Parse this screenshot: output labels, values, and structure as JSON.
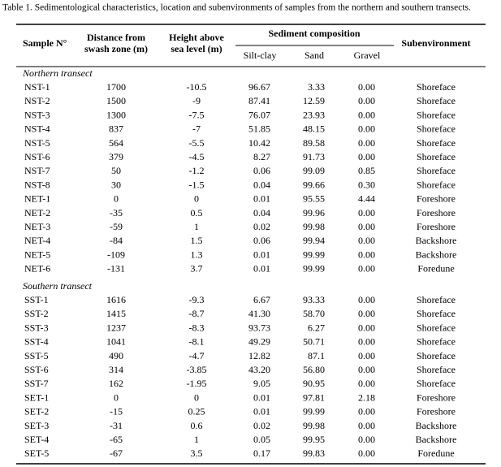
{
  "caption": "Table 1. Sedimentological characteristics, location and subenvironments of samples from the northern and southern transects.",
  "table": {
    "header": {
      "sample": [
        "Sample N°"
      ],
      "distance": [
        "Distance from",
        "swash zone (m)"
      ],
      "height": [
        "Height above",
        "sea level (m)"
      ],
      "composition": "Sediment composition",
      "silt_clay": "Silt-clay",
      "sand": "Sand",
      "gravel": "Gravel",
      "subenvironment": [
        "Subenvironment"
      ]
    },
    "groups": [
      {
        "label": "Northern transect",
        "rows": [
          [
            "NST-1",
            "1700",
            "-10.5",
            "96.67",
            "3.33",
            "0.00",
            "Shoreface"
          ],
          [
            "NST-2",
            "1500",
            "-9",
            "87.41",
            "12.59",
            "0.00",
            "Shoreface"
          ],
          [
            "NST-3",
            "1300",
            "-7.5",
            "76.07",
            "23.93",
            "0.00",
            "Shoreface"
          ],
          [
            "NST-4",
            "837",
            "-7",
            "51.85",
            "48.15",
            "0.00",
            "Shoreface"
          ],
          [
            "NST-5",
            "564",
            "-5.5",
            "10.42",
            "89.58",
            "0.00",
            "Shoreface"
          ],
          [
            "NST-6",
            "379",
            "-4.5",
            "8.27",
            "91.73",
            "0.00",
            "Shoreface"
          ],
          [
            "NST-7",
            "50",
            "-1.2",
            "0.06",
            "99.09",
            "0.85",
            "Shoreface"
          ],
          [
            "NST-8",
            "30",
            "-1.5",
            "0.04",
            "99.66",
            "0.30",
            "Shoreface"
          ],
          [
            "NET-1",
            "0",
            "0",
            "0.01",
            "95.55",
            "4.44",
            "Foreshore"
          ],
          [
            "NET-2",
            "-35",
            "0.5",
            "0.04",
            "99.96",
            "0.00",
            "Foreshore"
          ],
          [
            "NET-3",
            "-59",
            "1",
            "0.02",
            "99.98",
            "0.00",
            "Foreshore"
          ],
          [
            "NET-4",
            "-84",
            "1.5",
            "0.06",
            "99.94",
            "0.00",
            "Backshore"
          ],
          [
            "NET-5",
            "-109",
            "1.3",
            "0.01",
            "99.99",
            "0.00",
            "Backshore"
          ],
          [
            "NET-6",
            "-131",
            "3.7",
            "0.01",
            "99.99",
            "0.00",
            "Foredune"
          ]
        ]
      },
      {
        "label": "Southern transect",
        "rows": [
          [
            "SST-1",
            "1616",
            "-9.3",
            "6.67",
            "93.33",
            "0.00",
            "Shoreface"
          ],
          [
            "SST-2",
            "1415",
            "-8.7",
            "41.30",
            "58.70",
            "0.00",
            "Shoreface"
          ],
          [
            "SST-3",
            "1237",
            "-8.3",
            "93.73",
            "6.27",
            "0.00",
            "Shoreface"
          ],
          [
            "SST-4",
            "1041",
            "-8.1",
            "49.29",
            "50.71",
            "0.00",
            "Shoreface"
          ],
          [
            "SST-5",
            "490",
            "-4.7",
            "12.82",
            "87.1",
            "0.00",
            "Shoreface"
          ],
          [
            "SST-6",
            "314",
            "-3.85",
            "43.20",
            "56.80",
            "0.00",
            "Shoreface"
          ],
          [
            "SST-7",
            "162",
            "-1.95",
            "9.05",
            "90.95",
            "0.00",
            "Shoreface"
          ],
          [
            "SET-1",
            "0",
            "0",
            "0.01",
            "97.81",
            "2.18",
            "Foreshore"
          ],
          [
            "SET-2",
            "-15",
            "0.25",
            "0.01",
            "99.99",
            "0.00",
            "Foreshore"
          ],
          [
            "SET-3",
            "-31",
            "0.6",
            "0.02",
            "99.98",
            "0.00",
            "Backshore"
          ],
          [
            "SET-4",
            "-65",
            "1",
            "0.05",
            "99.95",
            "0.00",
            "Backshore"
          ],
          [
            "SET-5",
            "-67",
            "3.5",
            "0.17",
            "99.83",
            "0.00",
            "Foredune"
          ]
        ]
      }
    ]
  }
}
